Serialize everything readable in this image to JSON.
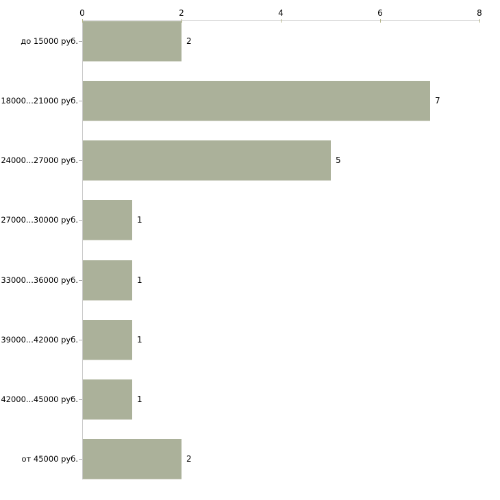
{
  "chart_data": {
    "type": "bar",
    "orientation": "horizontal",
    "title": "",
    "xlabel": "",
    "ylabel": "",
    "categories": [
      "до 15000 руб.",
      "18000...21000 руб.",
      "24000...27000 руб.",
      "27000...30000 руб.",
      "33000...36000 руб.",
      "39000...42000 руб.",
      "42000...45000 руб.",
      "от 45000 руб."
    ],
    "values": [
      2,
      7,
      5,
      1,
      1,
      1,
      1,
      2
    ],
    "value_labels": [
      "2",
      "7",
      "5",
      "1",
      "1",
      "1",
      "1",
      "2"
    ],
    "xlim": [
      0,
      8
    ],
    "x_ticks": [
      0,
      2,
      4,
      6,
      8
    ],
    "x_tick_labels": [
      "0",
      "2",
      "4",
      "6",
      "8"
    ],
    "axis_position": "top",
    "grid": false,
    "legend": null,
    "colors": {
      "bar_fill": "#abb19a",
      "bar_edge_highlight": "#d4d6ca",
      "axis_line": "#c9c9c9",
      "x_tick_mark": "#b5b58a",
      "category_tick_mark": "#a9a9a9",
      "text": "#000000",
      "background": "#ffffff"
    }
  }
}
